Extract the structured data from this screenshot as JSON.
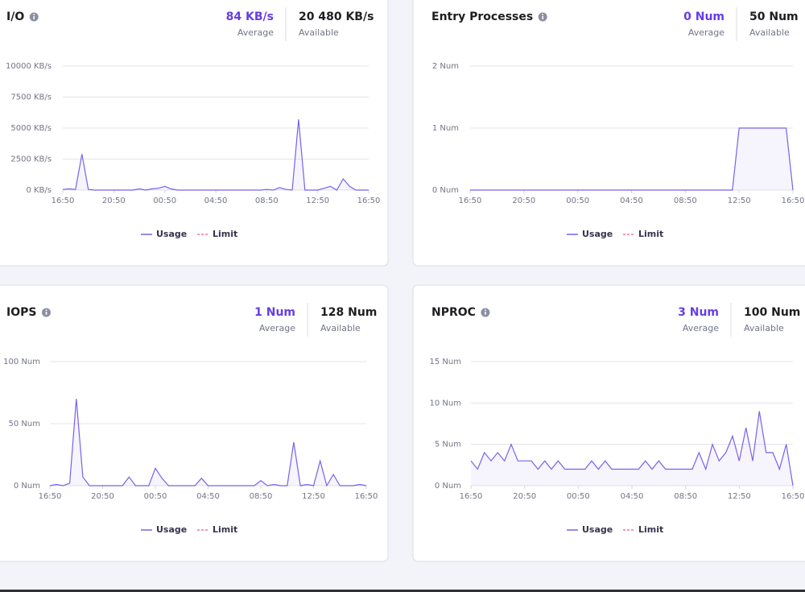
{
  "chart_data": [
    {
      "type": "line",
      "title": "I/O",
      "stats": [
        {
          "value": "84 KB/s",
          "label": "Average"
        },
        {
          "value": "20 480 KB/s",
          "label": "Available"
        }
      ],
      "ylim": [
        0,
        10000
      ],
      "yticks": [
        {
          "value": 0,
          "label": "0 KB/s"
        },
        {
          "value": 2500,
          "label": "2500 KB/s"
        },
        {
          "value": 5000,
          "label": "5000 KB/s"
        },
        {
          "value": 7500,
          "label": "7500 KB/s"
        },
        {
          "value": 10000,
          "label": "10000 KB/s"
        }
      ],
      "xlim": [
        0,
        48
      ],
      "xticks": [
        {
          "value": 0,
          "label": "16:50"
        },
        {
          "value": 8,
          "label": "20:50"
        },
        {
          "value": 16,
          "label": "00:50"
        },
        {
          "value": 24,
          "label": "04:50"
        },
        {
          "value": 32,
          "label": "08:50"
        },
        {
          "value": 40,
          "label": "12:50"
        },
        {
          "value": 48,
          "label": "16:50"
        }
      ],
      "grid": true,
      "series": [
        {
          "name": "Usage",
          "color": "#7b61e8",
          "values": [
            50,
            100,
            50,
            2900,
            50,
            0,
            0,
            0,
            0,
            0,
            0,
            0,
            100,
            0,
            100,
            150,
            300,
            100,
            0,
            0,
            0,
            0,
            0,
            0,
            0,
            0,
            0,
            0,
            0,
            0,
            0,
            0,
            50,
            0,
            200,
            50,
            0,
            5700,
            0,
            0,
            0,
            150,
            300,
            0,
            900,
            300,
            0,
            0,
            0
          ]
        },
        {
          "name": "Limit",
          "color": "#e87b9a",
          "dashed": true
        }
      ]
    },
    {
      "type": "line",
      "title": "Entry Processes",
      "stats": [
        {
          "value": "0 Num",
          "label": "Average"
        },
        {
          "value": "50 Num",
          "label": "Available"
        }
      ],
      "ylim": [
        0,
        2
      ],
      "yticks": [
        {
          "value": 0,
          "label": "0 Num"
        },
        {
          "value": 1,
          "label": "1 Num"
        },
        {
          "value": 2,
          "label": "2 Num"
        }
      ],
      "xlim": [
        0,
        48
      ],
      "xticks": [
        {
          "value": 0,
          "label": "16:50"
        },
        {
          "value": 8,
          "label": "20:50"
        },
        {
          "value": 16,
          "label": "00:50"
        },
        {
          "value": 24,
          "label": "04:50"
        },
        {
          "value": 32,
          "label": "08:50"
        },
        {
          "value": 40,
          "label": "12:50"
        },
        {
          "value": 48,
          "label": "16:50"
        }
      ],
      "grid": true,
      "series": [
        {
          "name": "Usage",
          "color": "#7b61e8",
          "values": [
            0,
            0,
            0,
            0,
            0,
            0,
            0,
            0,
            0,
            0,
            0,
            0,
            0,
            0,
            0,
            0,
            0,
            0,
            0,
            0,
            0,
            0,
            0,
            0,
            0,
            0,
            0,
            0,
            0,
            0,
            0,
            0,
            0,
            0,
            0,
            0,
            0,
            0,
            0,
            0,
            1,
            1,
            1,
            1,
            1,
            1,
            1,
            1,
            0
          ]
        },
        {
          "name": "Limit",
          "color": "#e87b9a",
          "dashed": true
        }
      ]
    },
    {
      "type": "line",
      "title": "IOPS",
      "stats": [
        {
          "value": "1 Num",
          "label": "Average"
        },
        {
          "value": "128 Num",
          "label": "Available"
        }
      ],
      "ylim": [
        0,
        100
      ],
      "yticks": [
        {
          "value": 0,
          "label": "0 Num"
        },
        {
          "value": 50,
          "label": "50 Num"
        },
        {
          "value": 100,
          "label": "100 Num"
        }
      ],
      "xlim": [
        0,
        48
      ],
      "xticks": [
        {
          "value": 0,
          "label": "16:50"
        },
        {
          "value": 8,
          "label": "20:50"
        },
        {
          "value": 16,
          "label": "00:50"
        },
        {
          "value": 24,
          "label": "04:50"
        },
        {
          "value": 32,
          "label": "08:50"
        },
        {
          "value": 40,
          "label": "12:50"
        },
        {
          "value": 48,
          "label": "16:50"
        }
      ],
      "grid": true,
      "series": [
        {
          "name": "Usage",
          "color": "#7b61e8",
          "values": [
            0,
            1,
            0,
            2,
            70,
            7,
            0,
            0,
            0,
            0,
            0,
            0,
            7,
            0,
            0,
            0,
            14,
            6,
            0,
            0,
            0,
            0,
            0,
            6,
            0,
            0,
            0,
            0,
            0,
            0,
            0,
            0,
            4,
            0,
            1,
            0,
            0,
            35,
            0,
            1,
            0,
            20,
            0,
            9,
            0,
            0,
            0,
            1,
            0
          ]
        },
        {
          "name": "Limit",
          "color": "#e87b9a",
          "dashed": true
        }
      ]
    },
    {
      "type": "line",
      "title": "NPROC",
      "stats": [
        {
          "value": "3 Num",
          "label": "Average"
        },
        {
          "value": "100 Num",
          "label": "Available"
        }
      ],
      "ylim": [
        0,
        15
      ],
      "yticks": [
        {
          "value": 0,
          "label": "0 Num"
        },
        {
          "value": 5,
          "label": "5 Num"
        },
        {
          "value": 10,
          "label": "10 Num"
        },
        {
          "value": 15,
          "label": "15 Num"
        }
      ],
      "xlim": [
        0,
        48
      ],
      "xticks": [
        {
          "value": 0,
          "label": "16:50"
        },
        {
          "value": 8,
          "label": "20:50"
        },
        {
          "value": 16,
          "label": "00:50"
        },
        {
          "value": 24,
          "label": "04:50"
        },
        {
          "value": 32,
          "label": "08:50"
        },
        {
          "value": 40,
          "label": "12:50"
        },
        {
          "value": 48,
          "label": "16:50"
        }
      ],
      "grid": true,
      "series": [
        {
          "name": "Usage",
          "color": "#7b61e8",
          "values": [
            3,
            2,
            4,
            3,
            4,
            3,
            5,
            3,
            3,
            3,
            2,
            3,
            2,
            3,
            2,
            2,
            2,
            2,
            3,
            2,
            3,
            2,
            2,
            2,
            2,
            2,
            3,
            2,
            3,
            2,
            2,
            2,
            2,
            2,
            4,
            2,
            5,
            3,
            4,
            6,
            3,
            7,
            3,
            9,
            4,
            4,
            2,
            5,
            0
          ]
        },
        {
          "name": "Limit",
          "color": "#e87b9a",
          "dashed": true
        }
      ]
    }
  ]
}
